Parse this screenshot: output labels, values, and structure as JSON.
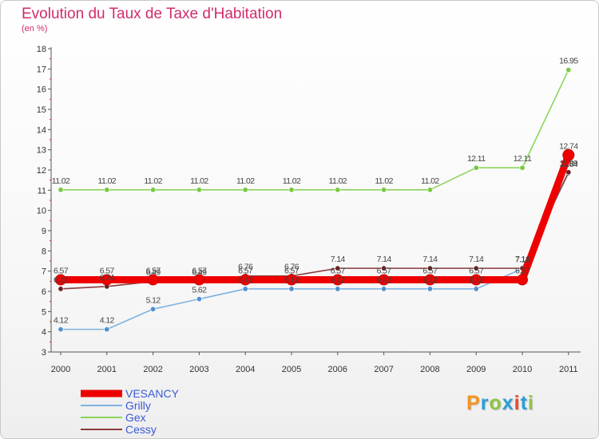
{
  "header": {
    "title": "Evolution du Taux de Taxe d'Habitation",
    "subtitle": "(en %)"
  },
  "logo": {
    "letters": [
      "P",
      "r",
      "o",
      "x",
      "i",
      "t",
      "i"
    ],
    "colors": [
      "#f7931e",
      "#2b9fd8",
      "#8cc63f",
      "#2b9fd8",
      "#e8472c",
      "#2b9fd8",
      "#8cc63f"
    ]
  },
  "chart_data": {
    "type": "line",
    "title": "Evolution du Taux de Taxe d'Habitation",
    "ylabel": "(en %)",
    "xlabel": "",
    "categories": [
      "2000",
      "2001",
      "2002",
      "2003",
      "2004",
      "2005",
      "2006",
      "2007",
      "2008",
      "2009",
      "2010",
      "2011"
    ],
    "ylim": [
      3,
      18
    ],
    "yticks": [
      "3",
      "4",
      "5",
      "6",
      "7",
      "8",
      "9",
      "10",
      "11",
      "12",
      "13",
      "14",
      "15",
      "16",
      "17",
      "18"
    ],
    "grid": false,
    "legend_position": "bottom-left",
    "series": [
      {
        "name": "Gex",
        "color": "#8cd45a",
        "marker": "#7ac943",
        "values": [
          11.02,
          11.02,
          11.02,
          11.02,
          11.02,
          11.02,
          11.02,
          11.02,
          11.02,
          12.11,
          12.11,
          16.95
        ],
        "labels": [
          "11.02",
          "11.02",
          "11.02",
          "11.02",
          "11.02",
          "11.02",
          "11.02",
          "11.02",
          "11.02",
          "12.11",
          "12.11",
          "16.95"
        ]
      },
      {
        "name": "Grilly",
        "color": "#7fb3e0",
        "marker": "#4f8fd0",
        "values": [
          4.12,
          4.12,
          5.12,
          5.62,
          6.12,
          6.12,
          6.12,
          6.12,
          6.12,
          6.12,
          7.12,
          11.84
        ],
        "labels": [
          "4.12",
          "4.12",
          "5.12",
          "5.62",
          "6.12",
          "6.12",
          "6.12",
          "6.12",
          "6.12",
          "6.12",
          "7.12",
          "11.84"
        ]
      },
      {
        "name": "Cessy",
        "color": "#8b3a3a",
        "marker": "#6b1f1f",
        "values": [
          6.12,
          6.24,
          6.49,
          6.49,
          6.76,
          6.76,
          7.14,
          7.14,
          7.14,
          7.14,
          7.14,
          11.89
        ],
        "labels": [
          "6.12",
          "6.24",
          "6.49",
          "6.49",
          "6.76",
          "6.76",
          "7.14",
          "7.14",
          "7.14",
          "7.14",
          "7.14",
          "11.89"
        ]
      },
      {
        "name": "VESANCY",
        "color": "#ee0000",
        "marker": "#ee0000",
        "values": [
          6.57,
          6.57,
          6.57,
          6.57,
          6.57,
          6.57,
          6.57,
          6.57,
          6.57,
          6.57,
          6.57,
          12.74
        ],
        "labels": [
          "6.57",
          "6.57",
          "6.57",
          "6.57",
          "6.57",
          "6.57",
          "6.57",
          "6.57",
          "6.57",
          "6.57",
          "6.57",
          "12.74"
        ]
      }
    ],
    "legend": [
      "VESANCY",
      "Grilly",
      "Gex",
      "Cessy"
    ]
  }
}
